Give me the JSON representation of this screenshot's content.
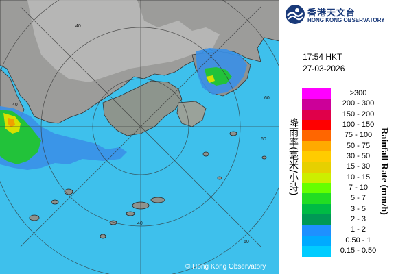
{
  "observatory": {
    "name_zh": "香港天文台",
    "name_en": "HONG KONG OBSERVATORY"
  },
  "time": "17:54 HKT",
  "date": "27-03-2026",
  "legend": {
    "title_zh": "降雨率(毫米/小時)",
    "title_en": "Rainfall Rate (mm/h)",
    "items": [
      {
        "label": ">300",
        "color": "#ff00ff"
      },
      {
        "label": "200 - 300",
        "color": "#cc0099"
      },
      {
        "label": "150 - 200",
        "color": "#e0004a"
      },
      {
        "label": "100 - 150",
        "color": "#ff0000"
      },
      {
        "label": "75 - 100",
        "color": "#ff6600"
      },
      {
        "label": "50 - 75",
        "color": "#ffaa00"
      },
      {
        "label": "30 - 50",
        "color": "#ffcc00"
      },
      {
        "label": "15 - 30",
        "color": "#e6d000"
      },
      {
        "label": "10 - 15",
        "color": "#ccee00"
      },
      {
        "label": "7 - 10",
        "color": "#66ff00"
      },
      {
        "label": "5 - 7",
        "color": "#22dd22"
      },
      {
        "label": "3 - 5",
        "color": "#00bb44"
      },
      {
        "label": "2 - 3",
        "color": "#009955"
      },
      {
        "label": "1 - 2",
        "color": "#1e90ff"
      },
      {
        "label": "0.50 - 1",
        "color": "#00aaff"
      },
      {
        "label": "0.15 - 0.50",
        "color": "#00ccff"
      }
    ]
  },
  "range_ring_labels": [
    "40",
    "40",
    "60",
    "60",
    "60",
    "40"
  ],
  "copyright": "© Hong Kong Observatory"
}
